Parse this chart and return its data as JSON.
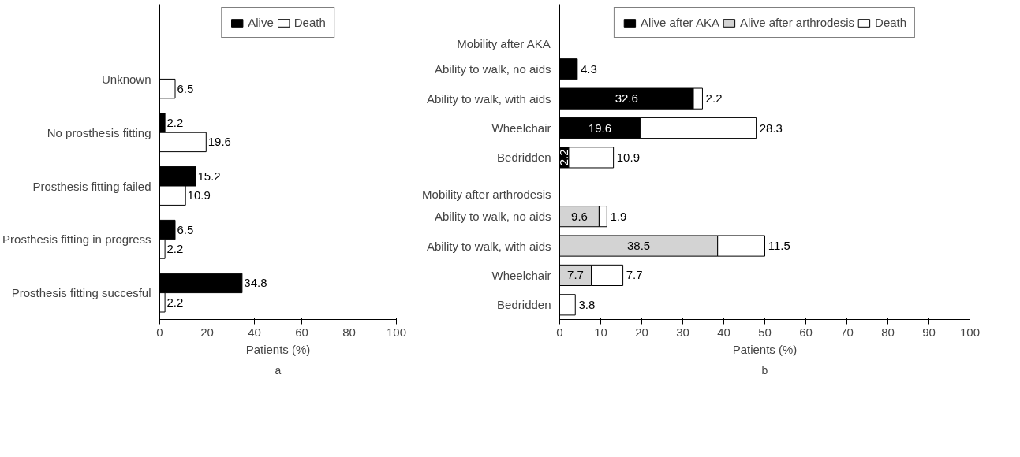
{
  "chart_data": [
    {
      "type": "bar",
      "orientation": "horizontal",
      "categories": [
        "Unknown",
        "No prosthesis fitting",
        "Prosthesis fitting failed",
        "Prosthesis fitting in progress",
        "Prosthesis fitting succesful"
      ],
      "series": [
        {
          "name": "Alive",
          "color": "#000000",
          "values": [
            null,
            2.2,
            15.2,
            6.5,
            34.8
          ]
        },
        {
          "name": "Death",
          "color": "#ffffff",
          "values": [
            6.5,
            19.6,
            10.9,
            2.2,
            2.2
          ]
        }
      ],
      "xlabel": "Patients (%)",
      "xlim": [
        0,
        100
      ],
      "xticks": [
        0,
        20,
        40,
        60,
        80,
        100
      ],
      "legend": "top",
      "data_labels": true,
      "grid": false,
      "annotations": [
        "a"
      ]
    },
    {
      "type": "bar",
      "orientation": "horizontal",
      "stacked": true,
      "categories": [
        "Ability to walk, no aids",
        "Ability to walk, with aids",
        "Wheelchair",
        "Bedridden",
        null,
        "Ability to walk, no aids",
        "Ability to walk, with aids",
        "Wheelchair",
        "Bedridden"
      ],
      "series": [
        {
          "name": "Alive after AKA",
          "color": "#000000",
          "values": [
            4.3,
            32.6,
            19.6,
            2.2,
            null,
            null,
            null,
            null,
            null
          ]
        },
        {
          "name": "Alive after arthrodesis",
          "color": "#d3d3d3",
          "values": [
            null,
            null,
            null,
            null,
            null,
            9.6,
            38.5,
            7.7,
            null
          ]
        },
        {
          "name": "Death",
          "color": "#ffffff",
          "values": [
            null,
            2.2,
            28.3,
            10.9,
            null,
            1.9,
            11.5,
            7.7,
            3.8
          ]
        }
      ],
      "xlabel": "Patients (%)",
      "xlim": [
        0,
        100
      ],
      "xticks": [
        0,
        10,
        20,
        30,
        40,
        50,
        60,
        70,
        80,
        90,
        100
      ],
      "legend": "top",
      "data_labels": true,
      "grid": false,
      "annotations": [
        "Mobility after AKA",
        "Mobility after arthrodesis",
        "b"
      ]
    }
  ]
}
